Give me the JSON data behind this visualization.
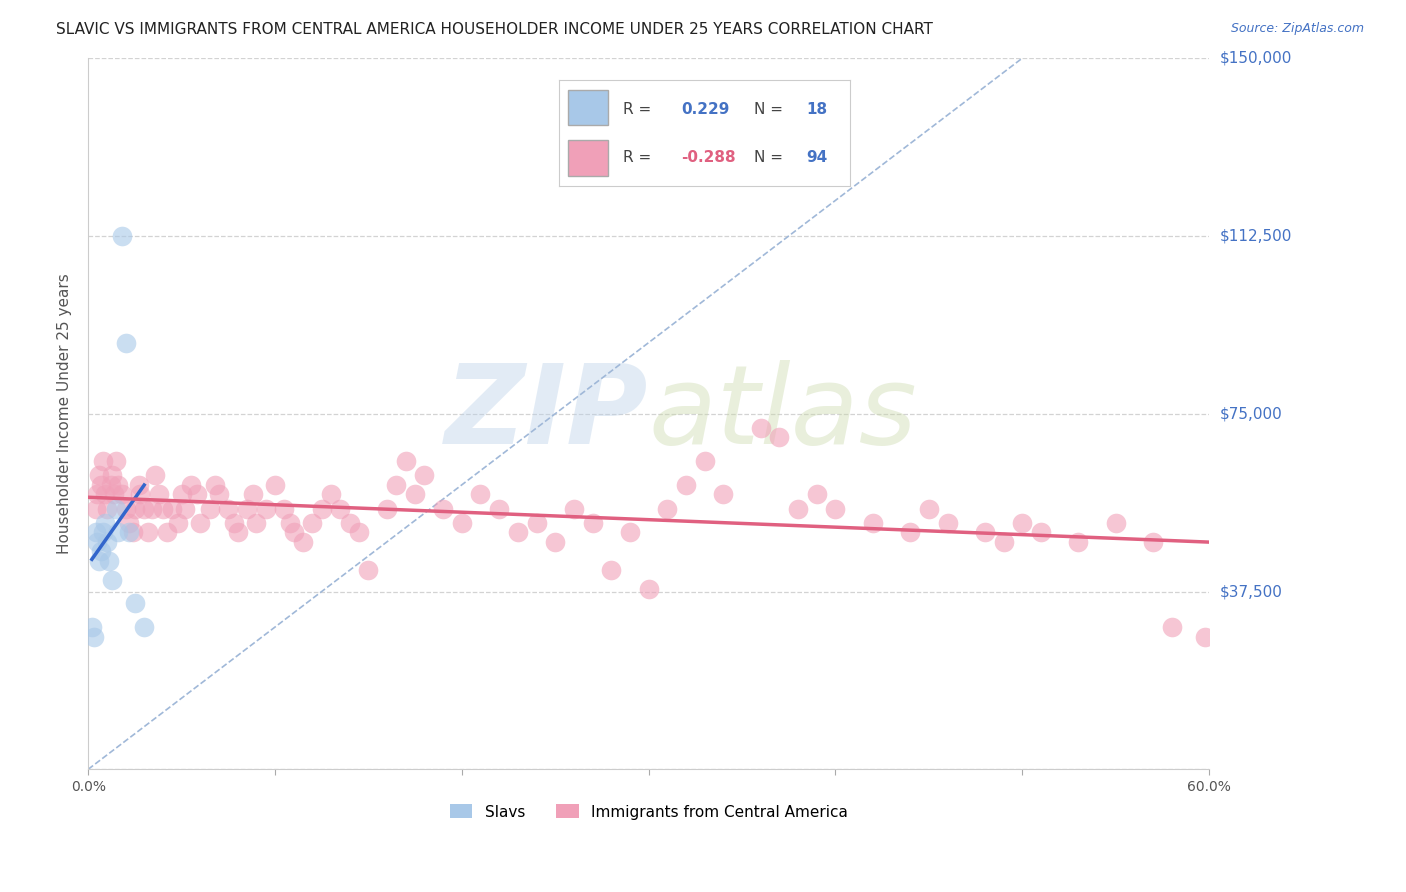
{
  "title": "SLAVIC VS IMMIGRANTS FROM CENTRAL AMERICA HOUSEHOLDER INCOME UNDER 25 YEARS CORRELATION CHART",
  "source": "Source: ZipAtlas.com",
  "ylabel": "Householder Income Under 25 years",
  "xlim": [
    0.0,
    0.6
  ],
  "ylim": [
    0,
    150000
  ],
  "yticks": [
    0,
    37500,
    75000,
    112500,
    150000
  ],
  "ytick_labels": [
    "",
    "$37,500",
    "$75,000",
    "$112,500",
    "$150,000"
  ],
  "xticks": [
    0.0,
    0.1,
    0.2,
    0.3,
    0.4,
    0.5,
    0.6
  ],
  "xtick_labels": [
    "0.0%",
    "",
    "",
    "",
    "",
    "",
    "60.0%"
  ],
  "background_color": "#ffffff",
  "grid_color": "#c8c8c8",
  "title_color": "#222222",
  "watermark_text": "ZIPatlas",
  "legend1_r": "0.229",
  "legend1_n": "18",
  "legend2_r": "-0.288",
  "legend2_n": "94",
  "slavs_color": "#a8c8e8",
  "immigrants_color": "#f0a0b8",
  "slavs_line_color": "#3366cc",
  "immigrants_line_color": "#e06080",
  "ref_line_color": "#a0b8d8",
  "slavs_x": [
    0.004,
    0.005,
    0.006,
    0.007,
    0.008,
    0.009,
    0.01,
    0.011,
    0.013,
    0.015,
    0.016,
    0.018,
    0.02,
    0.022,
    0.025,
    0.03,
    0.002,
    0.003
  ],
  "slavs_y": [
    50000,
    48000,
    44000,
    46000,
    50000,
    52000,
    48000,
    44000,
    40000,
    55000,
    50000,
    112500,
    90000,
    50000,
    35000,
    30000,
    30000,
    28000
  ],
  "immigrants_x": [
    0.004,
    0.005,
    0.006,
    0.007,
    0.008,
    0.009,
    0.01,
    0.012,
    0.013,
    0.014,
    0.015,
    0.016,
    0.018,
    0.02,
    0.022,
    0.024,
    0.025,
    0.027,
    0.028,
    0.03,
    0.032,
    0.034,
    0.036,
    0.038,
    0.04,
    0.042,
    0.045,
    0.048,
    0.05,
    0.052,
    0.055,
    0.058,
    0.06,
    0.065,
    0.068,
    0.07,
    0.075,
    0.078,
    0.08,
    0.085,
    0.088,
    0.09,
    0.095,
    0.1,
    0.105,
    0.108,
    0.11,
    0.115,
    0.12,
    0.125,
    0.13,
    0.135,
    0.14,
    0.145,
    0.15,
    0.16,
    0.165,
    0.17,
    0.175,
    0.18,
    0.19,
    0.2,
    0.21,
    0.22,
    0.23,
    0.24,
    0.25,
    0.26,
    0.27,
    0.28,
    0.29,
    0.3,
    0.31,
    0.32,
    0.33,
    0.34,
    0.36,
    0.37,
    0.38,
    0.39,
    0.4,
    0.42,
    0.44,
    0.45,
    0.46,
    0.48,
    0.49,
    0.5,
    0.51,
    0.53,
    0.55,
    0.57,
    0.58,
    0.598
  ],
  "immigrants_y": [
    55000,
    58000,
    62000,
    60000,
    65000,
    58000,
    55000,
    60000,
    62000,
    58000,
    65000,
    60000,
    58000,
    55000,
    52000,
    50000,
    55000,
    60000,
    58000,
    55000,
    50000,
    55000,
    62000,
    58000,
    55000,
    50000,
    55000,
    52000,
    58000,
    55000,
    60000,
    58000,
    52000,
    55000,
    60000,
    58000,
    55000,
    52000,
    50000,
    55000,
    58000,
    52000,
    55000,
    60000,
    55000,
    52000,
    50000,
    48000,
    52000,
    55000,
    58000,
    55000,
    52000,
    50000,
    42000,
    55000,
    60000,
    65000,
    58000,
    62000,
    55000,
    52000,
    58000,
    55000,
    50000,
    52000,
    48000,
    55000,
    52000,
    42000,
    50000,
    38000,
    55000,
    60000,
    65000,
    58000,
    72000,
    70000,
    55000,
    58000,
    55000,
    52000,
    50000,
    55000,
    52000,
    50000,
    48000,
    52000,
    50000,
    48000,
    52000,
    48000,
    30000,
    28000
  ]
}
